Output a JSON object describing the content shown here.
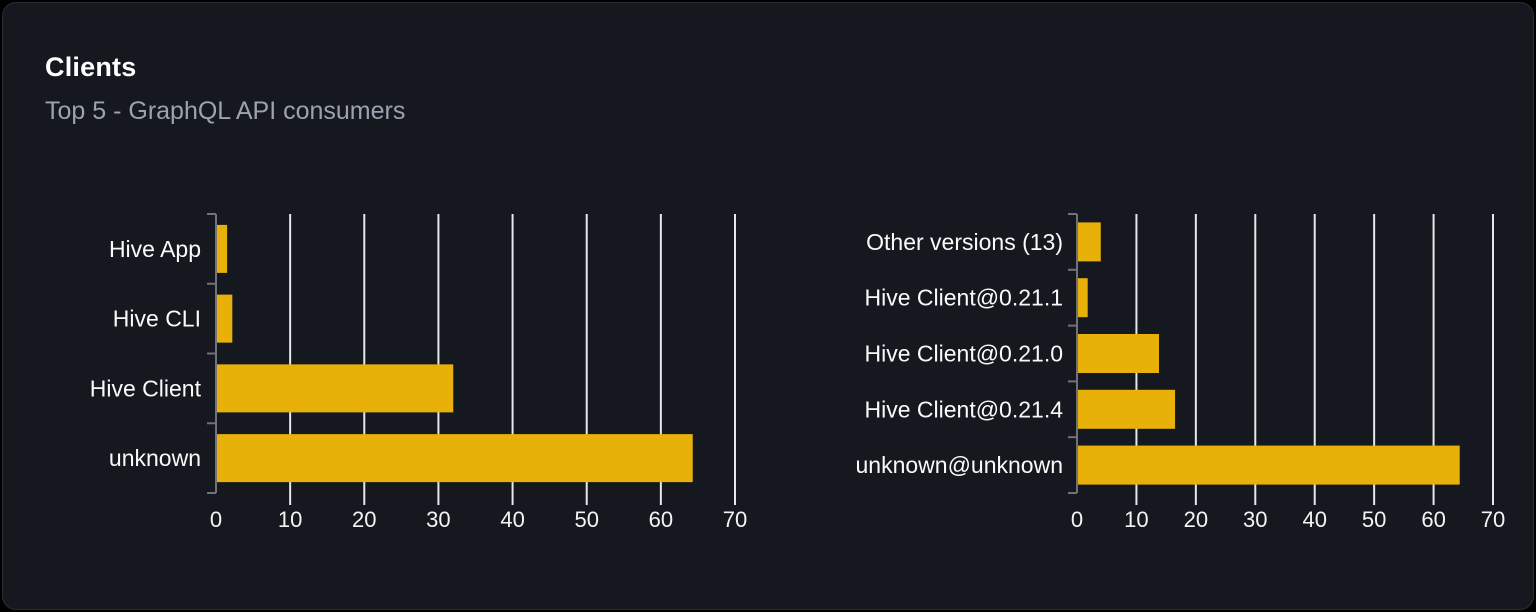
{
  "card": {
    "title": "Clients",
    "subtitle": "Top 5 - GraphQL API consumers"
  },
  "theme": {
    "page_background": "#000000",
    "card_background": "#15181e",
    "card_border": "#2a2e36",
    "title_color": "#ffffff",
    "subtitle_color": "#9ca3af",
    "bar_color": "#e8b10a",
    "grid_color": "#e5e7eb",
    "axis_color": "#71717a",
    "category_label_color": "#fafafa",
    "tick_label_color": "#f4f4f5"
  },
  "chart_data": [
    {
      "type": "bar",
      "orientation": "horizontal",
      "name": "clients-by-name",
      "categories": [
        "Hive App",
        "Hive CLI",
        "Hive Client",
        "unknown"
      ],
      "values": [
        1.5,
        2.2,
        32,
        64.3
      ],
      "xlim": [
        0,
        70
      ],
      "xticks": [
        0,
        10,
        20,
        30,
        40,
        50,
        60,
        70
      ],
      "grid": true,
      "legend": false,
      "title": "",
      "xlabel": "",
      "ylabel": ""
    },
    {
      "type": "bar",
      "orientation": "horizontal",
      "name": "clients-by-version",
      "categories": [
        "Other versions (13)",
        "Hive Client@0.21.1",
        "Hive Client@0.21.0",
        "Hive Client@0.21.4",
        "unknown@unknown"
      ],
      "values": [
        4,
        1.8,
        13.8,
        16.5,
        64.4
      ],
      "xlim": [
        0,
        70
      ],
      "xticks": [
        0,
        10,
        20,
        30,
        40,
        50,
        60,
        70
      ],
      "grid": true,
      "legend": false,
      "title": "",
      "xlabel": "",
      "ylabel": ""
    }
  ]
}
